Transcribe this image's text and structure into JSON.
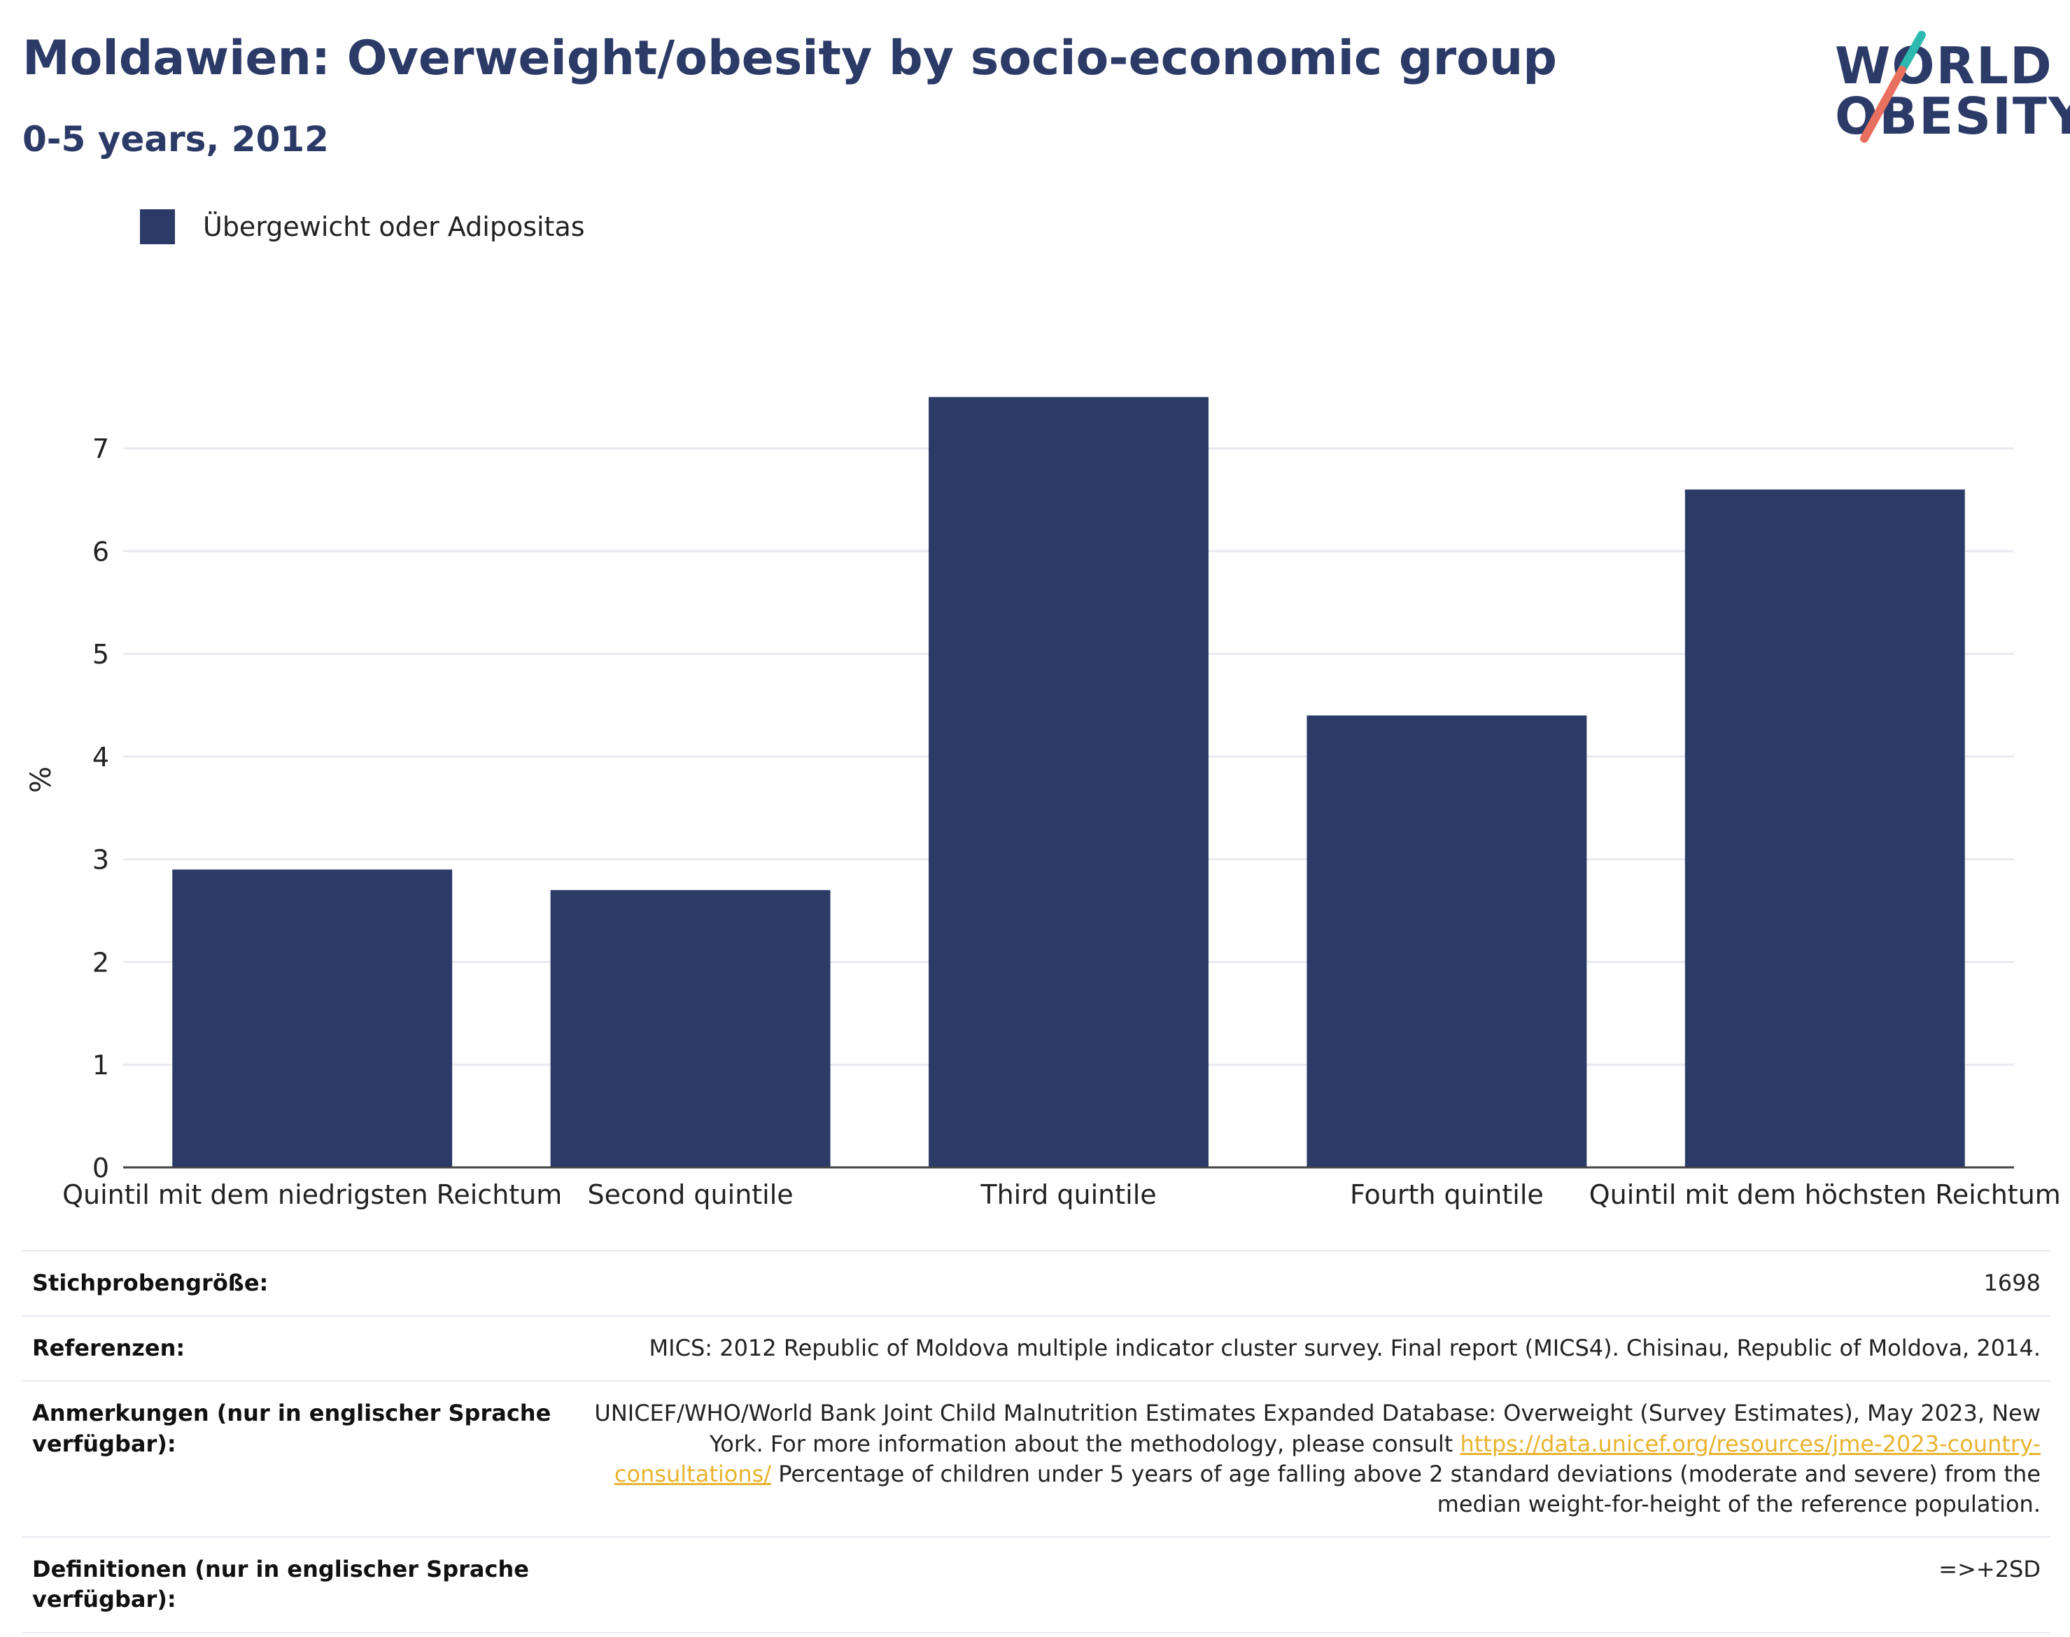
{
  "header": {
    "title": "Moldawien: Overweight/obesity by socio-economic group",
    "subtitle": "0-5 years, 2012"
  },
  "logo": {
    "line1": "WORLD",
    "line2": "OBESITY",
    "accent_teal": "#2cb9b0",
    "accent_coral": "#e8705e"
  },
  "legend": {
    "label": "Übergewicht oder Adipositas",
    "color": "#2b3a67"
  },
  "chart_data": {
    "type": "bar",
    "categories": [
      "Quintil mit dem niedrigsten Reichtum",
      "Second quintile",
      "Third quintile",
      "Fourth quintile",
      "Quintil mit dem höchsten Reichtum"
    ],
    "series": [
      {
        "name": "Übergewicht oder Adipositas",
        "values": [
          2.9,
          2.7,
          7.5,
          4.4,
          6.6
        ]
      }
    ],
    "ylabel": "%",
    "ylim": [
      0,
      7.55
    ],
    "yticks": [
      0,
      1,
      2,
      3,
      4,
      5,
      6,
      7
    ],
    "grid": true,
    "legend_position": "top-left",
    "bar_color": "#2b3a67"
  },
  "meta": {
    "rows": [
      {
        "label": "Stichprobengröße:",
        "value": "1698"
      },
      {
        "label": "Referenzen:",
        "value": "MICS: 2012 Republic of Moldova multiple indicator cluster survey. Final report (MICS4). Chisinau, Republic of Moldova, 2014."
      },
      {
        "label": "Anmerkungen (nur in englischer Sprache verfügbar):",
        "value_pre": "UNICEF/WHO/World Bank Joint Child Malnutrition Estimates Expanded Database: Overweight (Survey Estimates), May 2023, New York. For more information about the methodology, please consult ",
        "link": "https://data.unicef.org/resources/jme-2023-country-consultations/",
        "value_post": " Percentage of children under 5 years of age falling above 2 standard deviations (moderate and severe) from the median weight-for-height of the reference population."
      },
      {
        "label": "Definitionen (nur in englischer Sprache verfügbar):",
        "value": "=>+2SD"
      }
    ]
  }
}
